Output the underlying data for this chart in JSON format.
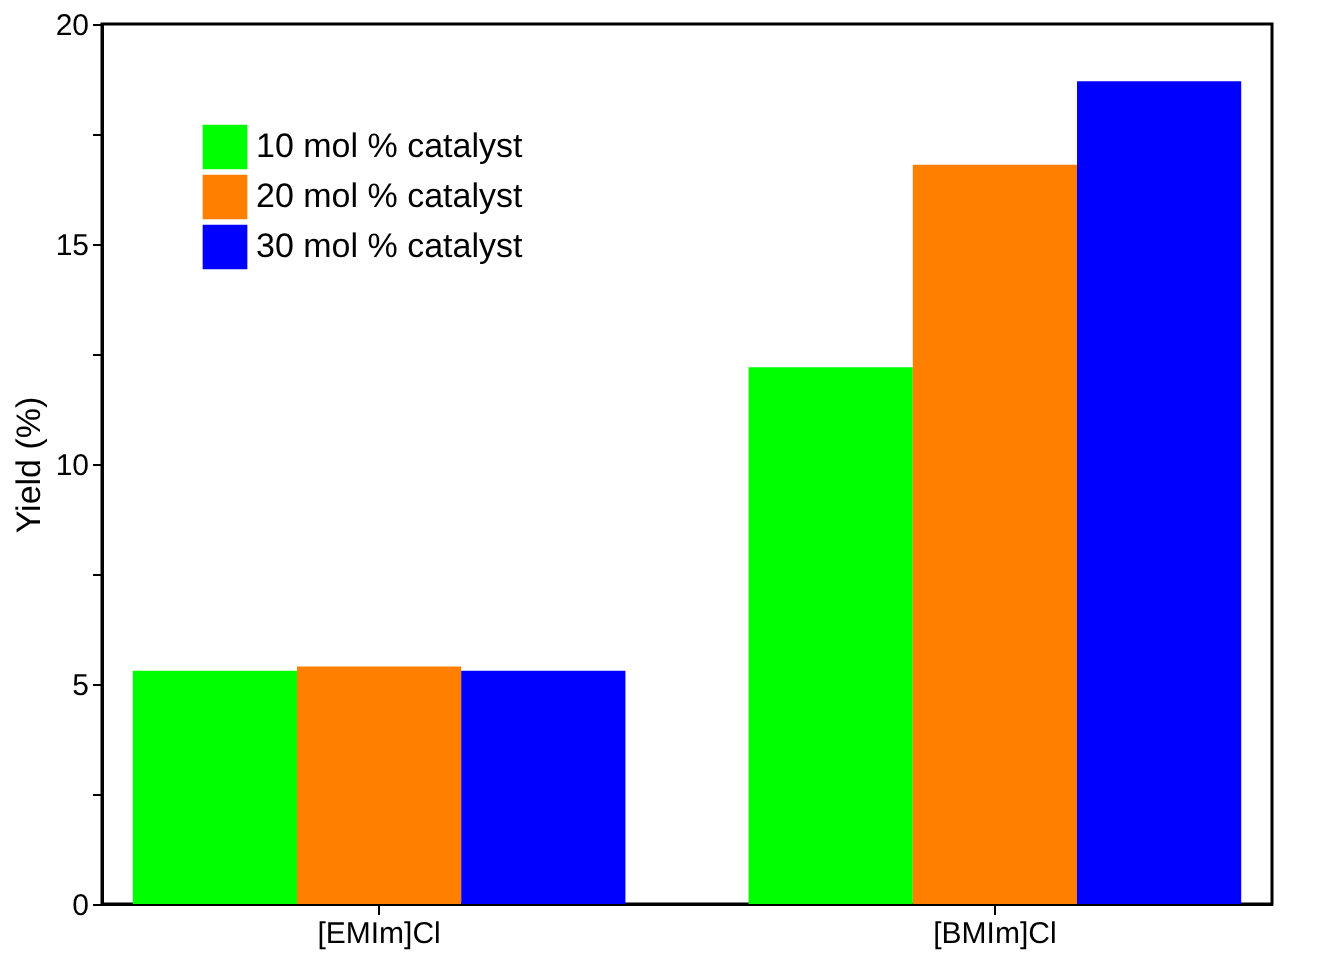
{
  "chart_data": {
    "type": "bar",
    "ylabel": "Yield (%)",
    "categories": [
      "[EMIm]Cl",
      "[BMIm]Cl"
    ],
    "series": [
      {
        "name": "10 mol % catalyst",
        "color": "#00ff00",
        "values": [
          5.3,
          12.2
        ]
      },
      {
        "name": "20 mol % catalyst",
        "color": "#ff8000",
        "values": [
          5.4,
          16.8
        ]
      },
      {
        "name": "30 mol % catalyst",
        "color": "#0000ff",
        "values": [
          5.3,
          18.7
        ]
      }
    ],
    "ylim": [
      0,
      20
    ],
    "yticks": [
      0,
      {
        "value": 2.5,
        "label": null
      },
      5,
      {
        "value": 7.5,
        "label": null
      },
      10,
      {
        "value": 12.5,
        "label": null
      },
      15,
      {
        "value": 17.5,
        "label": null
      },
      20
    ],
    "grid": false,
    "legend": "top left"
  }
}
